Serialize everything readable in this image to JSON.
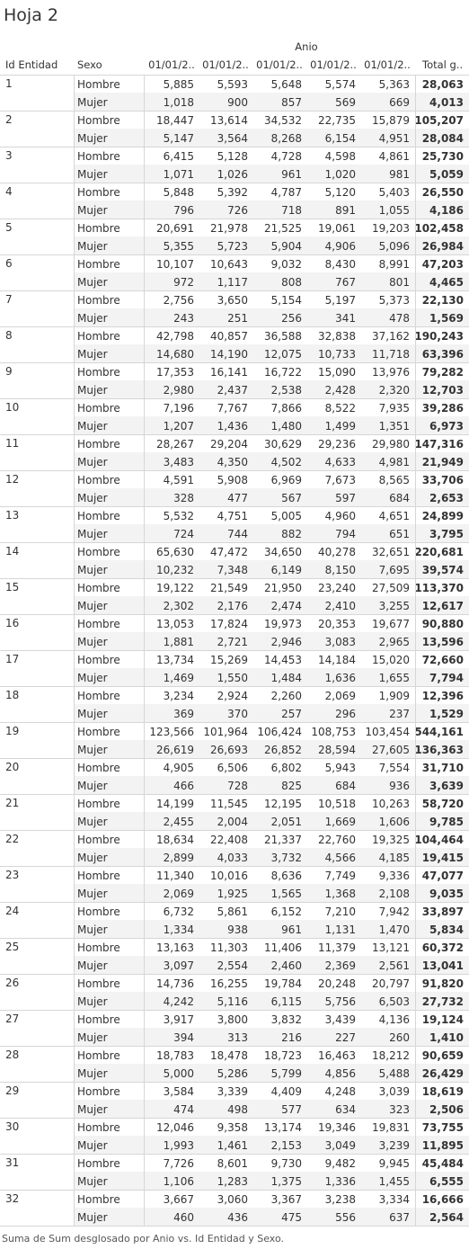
{
  "title": "Hoja 2",
  "footer": "Suma de Sum desglosado por Anio vs. Id Entidad y Sexo.",
  "chart_data": {
    "type": "table",
    "column_group_label": "Anio",
    "row_headers": [
      "Id Entidad",
      "Sexo"
    ],
    "columns": [
      "01/01/2..",
      "01/01/2..",
      "01/01/2..",
      "01/01/2..",
      "01/01/2..",
      "Total g.."
    ],
    "rows": [
      {
        "id": "1",
        "sexo": "Hombre",
        "values": [
          "5,885",
          "5,593",
          "5,648",
          "5,574",
          "5,363"
        ],
        "total": "28,063"
      },
      {
        "id": "1",
        "sexo": "Mujer",
        "values": [
          "1,018",
          "900",
          "857",
          "569",
          "669"
        ],
        "total": "4,013"
      },
      {
        "id": "2",
        "sexo": "Hombre",
        "values": [
          "18,447",
          "13,614",
          "34,532",
          "22,735",
          "15,879"
        ],
        "total": "105,207"
      },
      {
        "id": "2",
        "sexo": "Mujer",
        "values": [
          "5,147",
          "3,564",
          "8,268",
          "6,154",
          "4,951"
        ],
        "total": "28,084"
      },
      {
        "id": "3",
        "sexo": "Hombre",
        "values": [
          "6,415",
          "5,128",
          "4,728",
          "4,598",
          "4,861"
        ],
        "total": "25,730"
      },
      {
        "id": "3",
        "sexo": "Mujer",
        "values": [
          "1,071",
          "1,026",
          "961",
          "1,020",
          "981"
        ],
        "total": "5,059"
      },
      {
        "id": "4",
        "sexo": "Hombre",
        "values": [
          "5,848",
          "5,392",
          "4,787",
          "5,120",
          "5,403"
        ],
        "total": "26,550"
      },
      {
        "id": "4",
        "sexo": "Mujer",
        "values": [
          "796",
          "726",
          "718",
          "891",
          "1,055"
        ],
        "total": "4,186"
      },
      {
        "id": "5",
        "sexo": "Hombre",
        "values": [
          "20,691",
          "21,978",
          "21,525",
          "19,061",
          "19,203"
        ],
        "total": "102,458"
      },
      {
        "id": "5",
        "sexo": "Mujer",
        "values": [
          "5,355",
          "5,723",
          "5,904",
          "4,906",
          "5,096"
        ],
        "total": "26,984"
      },
      {
        "id": "6",
        "sexo": "Hombre",
        "values": [
          "10,107",
          "10,643",
          "9,032",
          "8,430",
          "8,991"
        ],
        "total": "47,203"
      },
      {
        "id": "6",
        "sexo": "Mujer",
        "values": [
          "972",
          "1,117",
          "808",
          "767",
          "801"
        ],
        "total": "4,465"
      },
      {
        "id": "7",
        "sexo": "Hombre",
        "values": [
          "2,756",
          "3,650",
          "5,154",
          "5,197",
          "5,373"
        ],
        "total": "22,130"
      },
      {
        "id": "7",
        "sexo": "Mujer",
        "values": [
          "243",
          "251",
          "256",
          "341",
          "478"
        ],
        "total": "1,569"
      },
      {
        "id": "8",
        "sexo": "Hombre",
        "values": [
          "42,798",
          "40,857",
          "36,588",
          "32,838",
          "37,162"
        ],
        "total": "190,243"
      },
      {
        "id": "8",
        "sexo": "Mujer",
        "values": [
          "14,680",
          "14,190",
          "12,075",
          "10,733",
          "11,718"
        ],
        "total": "63,396"
      },
      {
        "id": "9",
        "sexo": "Hombre",
        "values": [
          "17,353",
          "16,141",
          "16,722",
          "15,090",
          "13,976"
        ],
        "total": "79,282"
      },
      {
        "id": "9",
        "sexo": "Mujer",
        "values": [
          "2,980",
          "2,437",
          "2,538",
          "2,428",
          "2,320"
        ],
        "total": "12,703"
      },
      {
        "id": "10",
        "sexo": "Hombre",
        "values": [
          "7,196",
          "7,767",
          "7,866",
          "8,522",
          "7,935"
        ],
        "total": "39,286"
      },
      {
        "id": "10",
        "sexo": "Mujer",
        "values": [
          "1,207",
          "1,436",
          "1,480",
          "1,499",
          "1,351"
        ],
        "total": "6,973"
      },
      {
        "id": "11",
        "sexo": "Hombre",
        "values": [
          "28,267",
          "29,204",
          "30,629",
          "29,236",
          "29,980"
        ],
        "total": "147,316"
      },
      {
        "id": "11",
        "sexo": "Mujer",
        "values": [
          "3,483",
          "4,350",
          "4,502",
          "4,633",
          "4,981"
        ],
        "total": "21,949"
      },
      {
        "id": "12",
        "sexo": "Hombre",
        "values": [
          "4,591",
          "5,908",
          "6,969",
          "7,673",
          "8,565"
        ],
        "total": "33,706"
      },
      {
        "id": "12",
        "sexo": "Mujer",
        "values": [
          "328",
          "477",
          "567",
          "597",
          "684"
        ],
        "total": "2,653"
      },
      {
        "id": "13",
        "sexo": "Hombre",
        "values": [
          "5,532",
          "4,751",
          "5,005",
          "4,960",
          "4,651"
        ],
        "total": "24,899"
      },
      {
        "id": "13",
        "sexo": "Mujer",
        "values": [
          "724",
          "744",
          "882",
          "794",
          "651"
        ],
        "total": "3,795"
      },
      {
        "id": "14",
        "sexo": "Hombre",
        "values": [
          "65,630",
          "47,472",
          "34,650",
          "40,278",
          "32,651"
        ],
        "total": "220,681"
      },
      {
        "id": "14",
        "sexo": "Mujer",
        "values": [
          "10,232",
          "7,348",
          "6,149",
          "8,150",
          "7,695"
        ],
        "total": "39,574"
      },
      {
        "id": "15",
        "sexo": "Hombre",
        "values": [
          "19,122",
          "21,549",
          "21,950",
          "23,240",
          "27,509"
        ],
        "total": "113,370"
      },
      {
        "id": "15",
        "sexo": "Mujer",
        "values": [
          "2,302",
          "2,176",
          "2,474",
          "2,410",
          "3,255"
        ],
        "total": "12,617"
      },
      {
        "id": "16",
        "sexo": "Hombre",
        "values": [
          "13,053",
          "17,824",
          "19,973",
          "20,353",
          "19,677"
        ],
        "total": "90,880"
      },
      {
        "id": "16",
        "sexo": "Mujer",
        "values": [
          "1,881",
          "2,721",
          "2,946",
          "3,083",
          "2,965"
        ],
        "total": "13,596"
      },
      {
        "id": "17",
        "sexo": "Hombre",
        "values": [
          "13,734",
          "15,269",
          "14,453",
          "14,184",
          "15,020"
        ],
        "total": "72,660"
      },
      {
        "id": "17",
        "sexo": "Mujer",
        "values": [
          "1,469",
          "1,550",
          "1,484",
          "1,636",
          "1,655"
        ],
        "total": "7,794"
      },
      {
        "id": "18",
        "sexo": "Hombre",
        "values": [
          "3,234",
          "2,924",
          "2,260",
          "2,069",
          "1,909"
        ],
        "total": "12,396"
      },
      {
        "id": "18",
        "sexo": "Mujer",
        "values": [
          "369",
          "370",
          "257",
          "296",
          "237"
        ],
        "total": "1,529"
      },
      {
        "id": "19",
        "sexo": "Hombre",
        "values": [
          "123,566",
          "101,964",
          "106,424",
          "108,753",
          "103,454"
        ],
        "total": "544,161"
      },
      {
        "id": "19",
        "sexo": "Mujer",
        "values": [
          "26,619",
          "26,693",
          "26,852",
          "28,594",
          "27,605"
        ],
        "total": "136,363"
      },
      {
        "id": "20",
        "sexo": "Hombre",
        "values": [
          "4,905",
          "6,506",
          "6,802",
          "5,943",
          "7,554"
        ],
        "total": "31,710"
      },
      {
        "id": "20",
        "sexo": "Mujer",
        "values": [
          "466",
          "728",
          "825",
          "684",
          "936"
        ],
        "total": "3,639"
      },
      {
        "id": "21",
        "sexo": "Hombre",
        "values": [
          "14,199",
          "11,545",
          "12,195",
          "10,518",
          "10,263"
        ],
        "total": "58,720"
      },
      {
        "id": "21",
        "sexo": "Mujer",
        "values": [
          "2,455",
          "2,004",
          "2,051",
          "1,669",
          "1,606"
        ],
        "total": "9,785"
      },
      {
        "id": "22",
        "sexo": "Hombre",
        "values": [
          "18,634",
          "22,408",
          "21,337",
          "22,760",
          "19,325"
        ],
        "total": "104,464"
      },
      {
        "id": "22",
        "sexo": "Mujer",
        "values": [
          "2,899",
          "4,033",
          "3,732",
          "4,566",
          "4,185"
        ],
        "total": "19,415"
      },
      {
        "id": "23",
        "sexo": "Hombre",
        "values": [
          "11,340",
          "10,016",
          "8,636",
          "7,749",
          "9,336"
        ],
        "total": "47,077"
      },
      {
        "id": "23",
        "sexo": "Mujer",
        "values": [
          "2,069",
          "1,925",
          "1,565",
          "1,368",
          "2,108"
        ],
        "total": "9,035"
      },
      {
        "id": "24",
        "sexo": "Hombre",
        "values": [
          "6,732",
          "5,861",
          "6,152",
          "7,210",
          "7,942"
        ],
        "total": "33,897"
      },
      {
        "id": "24",
        "sexo": "Mujer",
        "values": [
          "1,334",
          "938",
          "961",
          "1,131",
          "1,470"
        ],
        "total": "5,834"
      },
      {
        "id": "25",
        "sexo": "Hombre",
        "values": [
          "13,163",
          "11,303",
          "11,406",
          "11,379",
          "13,121"
        ],
        "total": "60,372"
      },
      {
        "id": "25",
        "sexo": "Mujer",
        "values": [
          "3,097",
          "2,554",
          "2,460",
          "2,369",
          "2,561"
        ],
        "total": "13,041"
      },
      {
        "id": "26",
        "sexo": "Hombre",
        "values": [
          "14,736",
          "16,255",
          "19,784",
          "20,248",
          "20,797"
        ],
        "total": "91,820"
      },
      {
        "id": "26",
        "sexo": "Mujer",
        "values": [
          "4,242",
          "5,116",
          "6,115",
          "5,756",
          "6,503"
        ],
        "total": "27,732"
      },
      {
        "id": "27",
        "sexo": "Hombre",
        "values": [
          "3,917",
          "3,800",
          "3,832",
          "3,439",
          "4,136"
        ],
        "total": "19,124"
      },
      {
        "id": "27",
        "sexo": "Mujer",
        "values": [
          "394",
          "313",
          "216",
          "227",
          "260"
        ],
        "total": "1,410"
      },
      {
        "id": "28",
        "sexo": "Hombre",
        "values": [
          "18,783",
          "18,478",
          "18,723",
          "16,463",
          "18,212"
        ],
        "total": "90,659"
      },
      {
        "id": "28",
        "sexo": "Mujer",
        "values": [
          "5,000",
          "5,286",
          "5,799",
          "4,856",
          "5,488"
        ],
        "total": "26,429"
      },
      {
        "id": "29",
        "sexo": "Hombre",
        "values": [
          "3,584",
          "3,339",
          "4,409",
          "4,248",
          "3,039"
        ],
        "total": "18,619"
      },
      {
        "id": "29",
        "sexo": "Mujer",
        "values": [
          "474",
          "498",
          "577",
          "634",
          "323"
        ],
        "total": "2,506"
      },
      {
        "id": "30",
        "sexo": "Hombre",
        "values": [
          "12,046",
          "9,358",
          "13,174",
          "19,346",
          "19,831"
        ],
        "total": "73,755"
      },
      {
        "id": "30",
        "sexo": "Mujer",
        "values": [
          "1,993",
          "1,461",
          "2,153",
          "3,049",
          "3,239"
        ],
        "total": "11,895"
      },
      {
        "id": "31",
        "sexo": "Hombre",
        "values": [
          "7,726",
          "8,601",
          "9,730",
          "9,482",
          "9,945"
        ],
        "total": "45,484"
      },
      {
        "id": "31",
        "sexo": "Mujer",
        "values": [
          "1,106",
          "1,283",
          "1,375",
          "1,336",
          "1,455"
        ],
        "total": "6,555"
      },
      {
        "id": "32",
        "sexo": "Hombre",
        "values": [
          "3,667",
          "3,060",
          "3,367",
          "3,238",
          "3,334"
        ],
        "total": "16,666"
      },
      {
        "id": "32",
        "sexo": "Mujer",
        "values": [
          "460",
          "436",
          "475",
          "556",
          "637"
        ],
        "total": "2,564"
      }
    ]
  }
}
